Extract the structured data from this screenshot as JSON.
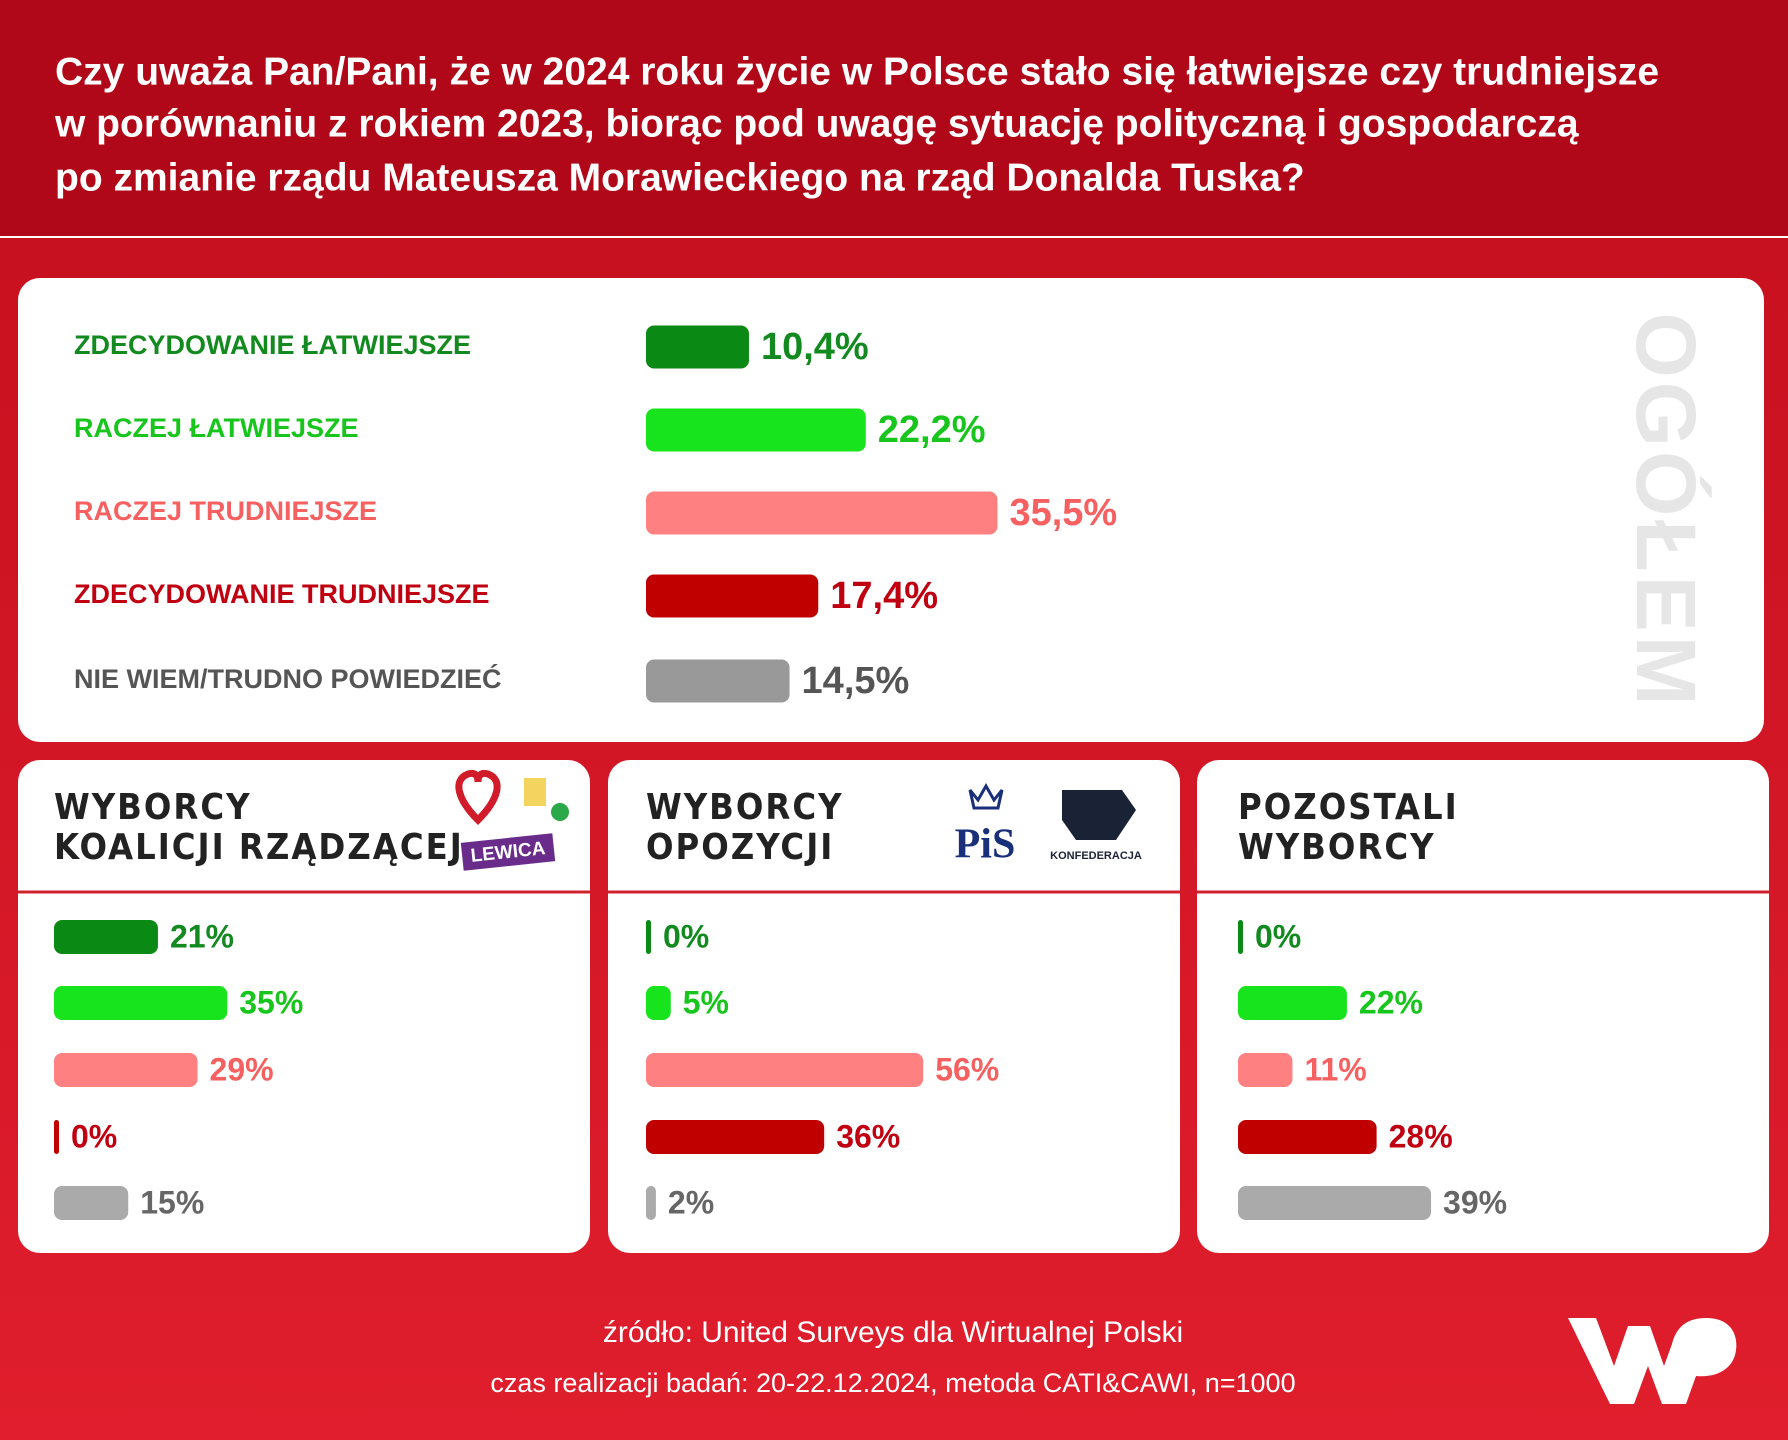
{
  "header": {
    "title": [
      "Czy uważa Pan/Pani, że w 2024 roku życie w Polsce stało się łatwiejsze czy trudniejsze",
      "w porównaniu z rokiem 2023, biorąc pod uwagę sytuację polityczną i gospodarczą",
      "po zmianie rządu Mateusza Morawieckiego na rząd Donalda Tuska?"
    ]
  },
  "chart_data": [
    {
      "type": "bar",
      "title": "OGÓŁEM",
      "orientation": "horizontal",
      "categories": [
        "ZDECYDOWANIE ŁATWIEJSZE",
        "RACZEJ ŁATWIEJSZE",
        "RACZEJ TRUDNIEJSZE",
        "ZDECYDOWANIE TRUDNIEJSZE",
        "NIE WIEM/TRUDNO POWIEDZIEĆ"
      ],
      "values": [
        10.4,
        22.2,
        35.5,
        17.4,
        14.5
      ],
      "value_labels": [
        "10,4%",
        "22,2%",
        "35,5%",
        "17,4%",
        "14,5%"
      ],
      "colors": [
        "#0a8a14",
        "#17e41c",
        "#ff8080",
        "#c00000",
        "#999999"
      ],
      "xlim": [
        0,
        100
      ]
    },
    {
      "type": "bar",
      "title": [
        "WYBORCY",
        "KOALICJI RZĄDZĄCEJ"
      ],
      "logos": [
        "LEWICA"
      ],
      "orientation": "horizontal",
      "values": [
        21,
        35,
        29,
        0,
        15
      ],
      "value_labels": [
        "21%",
        "35%",
        "29%",
        "0%",
        "15%"
      ],
      "colors": [
        "#0a8a14",
        "#17e41c",
        "#ff8080",
        "#c00000",
        "#aaaaaa"
      ],
      "xlim": [
        0,
        100
      ]
    },
    {
      "type": "bar",
      "title": [
        "WYBORCY",
        "OPOZYCJI"
      ],
      "logos": [
        "PiS",
        "KONFEDERACJA"
      ],
      "orientation": "horizontal",
      "values": [
        0,
        5,
        56,
        36,
        2
      ],
      "value_labels": [
        "0%",
        "5%",
        "56%",
        "36%",
        "2%"
      ],
      "colors": [
        "#0a8a14",
        "#17e41c",
        "#ff8080",
        "#c00000",
        "#aaaaaa"
      ],
      "xlim": [
        0,
        100
      ]
    },
    {
      "type": "bar",
      "title": [
        "POZOSTALI",
        "WYBORCY"
      ],
      "orientation": "horizontal",
      "values": [
        0,
        22,
        11,
        28,
        39
      ],
      "value_labels": [
        "0%",
        "22%",
        "11%",
        "28%",
        "39%"
      ],
      "colors": [
        "#0a8a14",
        "#17e41c",
        "#ff8080",
        "#c00000",
        "#aaaaaa"
      ],
      "xlim": [
        0,
        100
      ]
    }
  ],
  "footer": {
    "source": "źródło: United Surveys dla Wirtualnej Polski",
    "details": "czas realizacji badań: 20-22.12.2024, metoda CATI&CAWI, n=1000"
  }
}
